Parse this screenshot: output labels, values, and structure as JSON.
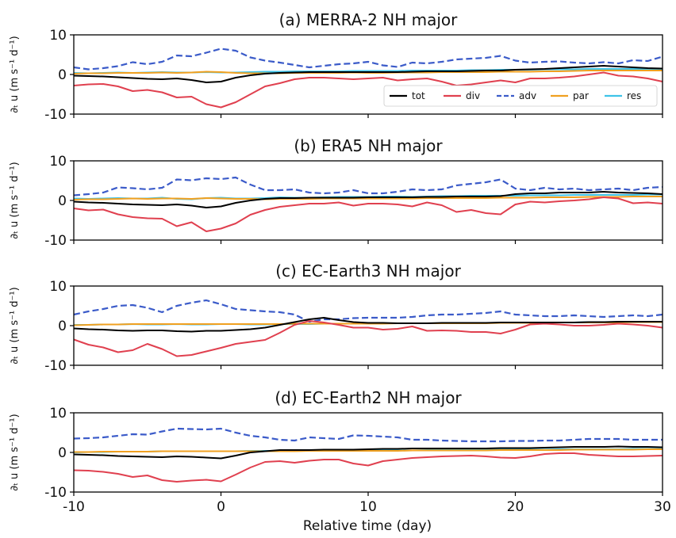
{
  "figure": {
    "xlabel": "Relative time (day)",
    "ylabel": "∂ₜ u (m s⁻¹ d⁻¹)"
  },
  "legend": [
    {
      "key": "tot",
      "label": "tot",
      "color": "#000000",
      "dash": "solid"
    },
    {
      "key": "div",
      "label": "div",
      "color": "#e0404f",
      "dash": "solid"
    },
    {
      "key": "adv",
      "label": "adv",
      "color": "#3b5bc9",
      "dash": "dashed"
    },
    {
      "key": "par",
      "label": "par",
      "color": "#f0a020",
      "dash": "solid"
    },
    {
      "key": "res",
      "label": "res",
      "color": "#3ec3e8",
      "dash": "solid"
    }
  ],
  "chart_data": [
    {
      "type": "line",
      "title": "(a) MERRA-2 NH major",
      "xlim": [
        -10,
        30
      ],
      "ylim": [
        -10,
        10
      ],
      "xticks": [
        "-10",
        "0",
        "10",
        "20",
        "30"
      ],
      "yticks": [
        "10",
        "0",
        "-10"
      ],
      "x": [
        -10,
        -9,
        -8,
        -7,
        -6,
        -5,
        -4,
        -3,
        -2,
        -1,
        0,
        1,
        2,
        3,
        4,
        5,
        6,
        7,
        8,
        9,
        10,
        11,
        12,
        13,
        14,
        15,
        16,
        17,
        18,
        19,
        20,
        21,
        22,
        23,
        24,
        25,
        26,
        27,
        28,
        29,
        30
      ],
      "series": [
        {
          "name": "tot",
          "values": [
            -0.3,
            -0.4,
            -0.5,
            -0.7,
            -0.9,
            -1.1,
            -1.2,
            -1.0,
            -1.4,
            -2.0,
            -1.8,
            -0.8,
            -0.2,
            0.2,
            0.4,
            0.5,
            0.6,
            0.6,
            0.6,
            0.6,
            0.6,
            0.6,
            0.6,
            0.7,
            0.8,
            0.8,
            0.8,
            0.9,
            1.0,
            1.0,
            1.2,
            1.3,
            1.4,
            1.6,
            1.8,
            2.0,
            2.2,
            2.0,
            1.8,
            1.6,
            1.5
          ]
        },
        {
          "name": "div",
          "values": [
            -2.8,
            -2.5,
            -2.4,
            -3.0,
            -4.2,
            -3.9,
            -4.5,
            -5.8,
            -5.6,
            -7.5,
            -8.3,
            -7.0,
            -5.0,
            -3.0,
            -2.2,
            -1.2,
            -0.8,
            -0.8,
            -1.0,
            -1.2,
            -1.0,
            -0.8,
            -1.5,
            -1.2,
            -1.0,
            -1.8,
            -2.8,
            -2.5,
            -2.0,
            -1.5,
            -2.0,
            -1.0,
            -1.0,
            -0.8,
            -0.5,
            0.0,
            0.5,
            -0.3,
            -0.5,
            -1.0,
            -1.8
          ]
        },
        {
          "name": "adv",
          "values": [
            1.8,
            1.3,
            1.6,
            2.1,
            3.1,
            2.6,
            3.2,
            4.8,
            4.6,
            5.5,
            6.5,
            6.0,
            4.3,
            3.5,
            3.0,
            2.4,
            1.8,
            2.2,
            2.6,
            2.8,
            3.2,
            2.3,
            1.9,
            3.0,
            2.8,
            3.2,
            3.8,
            4.0,
            4.2,
            4.7,
            3.5,
            3.0,
            3.2,
            3.3,
            3.0,
            2.8,
            3.1,
            2.8,
            3.6,
            3.4,
            4.5
          ]
        },
        {
          "name": "par",
          "values": [
            0.2,
            0.3,
            0.3,
            0.4,
            0.4,
            0.4,
            0.5,
            0.4,
            0.5,
            0.7,
            0.6,
            0.4,
            0.3,
            0.3,
            0.3,
            0.4,
            0.4,
            0.4,
            0.4,
            0.5,
            0.4,
            0.4,
            0.5,
            0.5,
            0.5,
            0.6,
            0.6,
            0.6,
            0.6,
            0.7,
            0.7,
            0.7,
            0.8,
            0.8,
            0.9,
            1.0,
            1.0,
            1.0,
            1.0,
            1.0,
            1.0
          ]
        },
        {
          "name": "res",
          "values": [
            0.4,
            0.3,
            0.4,
            0.5,
            0.4,
            0.5,
            0.6,
            0.5,
            0.5,
            0.6,
            0.5,
            0.5,
            0.6,
            0.7,
            0.7,
            0.8,
            0.8,
            0.8,
            0.8,
            0.9,
            0.9,
            0.9,
            0.9,
            1.0,
            1.0,
            1.0,
            1.0,
            1.1,
            1.1,
            1.2,
            1.2,
            1.2,
            1.3,
            1.3,
            1.3,
            1.4,
            1.4,
            1.4,
            1.4,
            1.4,
            1.4
          ]
        }
      ]
    },
    {
      "type": "line",
      "title": "(b) ERA5 NH major",
      "xlim": [
        -10,
        30
      ],
      "ylim": [
        -10,
        10
      ],
      "xticks": [
        "-10",
        "0",
        "10",
        "20",
        "30"
      ],
      "yticks": [
        "10",
        "0",
        "-10"
      ],
      "x": [
        -10,
        -9,
        -8,
        -7,
        -6,
        -5,
        -4,
        -3,
        -2,
        -1,
        0,
        1,
        2,
        3,
        4,
        5,
        6,
        7,
        8,
        9,
        10,
        11,
        12,
        13,
        14,
        15,
        16,
        17,
        18,
        19,
        20,
        21,
        22,
        23,
        24,
        25,
        26,
        27,
        28,
        29,
        30
      ],
      "series": [
        {
          "name": "tot",
          "values": [
            -0.3,
            -0.5,
            -0.6,
            -0.8,
            -1.0,
            -1.1,
            -1.2,
            -1.0,
            -1.3,
            -1.8,
            -1.5,
            -0.6,
            0.0,
            0.4,
            0.6,
            0.6,
            0.7,
            0.7,
            0.7,
            0.7,
            0.8,
            0.8,
            0.8,
            0.8,
            0.9,
            0.9,
            1.0,
            1.0,
            1.0,
            1.1,
            1.6,
            1.8,
            1.8,
            2.0,
            2.0,
            2.0,
            2.2,
            2.0,
            1.9,
            1.8,
            1.6
          ]
        },
        {
          "name": "div",
          "values": [
            -2.0,
            -2.5,
            -2.3,
            -3.5,
            -4.2,
            -4.5,
            -4.6,
            -6.5,
            -5.5,
            -7.8,
            -7.1,
            -5.8,
            -3.6,
            -2.4,
            -1.6,
            -1.2,
            -0.8,
            -0.8,
            -0.5,
            -1.3,
            -0.8,
            -0.8,
            -1.0,
            -1.5,
            -0.5,
            -1.2,
            -2.9,
            -2.4,
            -3.2,
            -3.5,
            -1.0,
            -0.3,
            -0.5,
            -0.2,
            0.0,
            0.3,
            0.8,
            0.5,
            -0.7,
            -0.5,
            -0.8
          ]
        },
        {
          "name": "adv",
          "values": [
            1.3,
            1.6,
            2.0,
            3.3,
            3.1,
            2.8,
            3.2,
            5.3,
            5.1,
            5.6,
            5.4,
            5.8,
            4.0,
            2.6,
            2.6,
            2.8,
            2.0,
            1.8,
            2.0,
            2.6,
            1.8,
            1.8,
            2.2,
            2.8,
            2.6,
            2.8,
            3.8,
            4.2,
            4.6,
            5.3,
            3.0,
            2.6,
            3.2,
            2.8,
            3.0,
            2.6,
            2.8,
            3.0,
            2.6,
            3.2,
            3.4
          ]
        },
        {
          "name": "par",
          "values": [
            0.2,
            0.3,
            0.3,
            0.4,
            0.5,
            0.4,
            0.5,
            0.5,
            0.4,
            0.6,
            0.5,
            0.4,
            0.4,
            0.3,
            0.4,
            0.4,
            0.4,
            0.5,
            0.5,
            0.5,
            0.5,
            0.5,
            0.5,
            0.5,
            0.6,
            0.6,
            0.6,
            0.6,
            0.6,
            0.7,
            0.7,
            0.7,
            0.8,
            0.8,
            0.8,
            0.9,
            0.9,
            0.9,
            1.0,
            1.0,
            1.0
          ]
        },
        {
          "name": "res",
          "values": [
            0.5,
            0.4,
            0.5,
            0.6,
            0.5,
            0.5,
            0.7,
            0.4,
            0.3,
            0.6,
            0.7,
            0.5,
            0.5,
            0.6,
            0.8,
            0.7,
            0.7,
            0.8,
            0.9,
            0.9,
            0.9,
            1.0,
            1.0,
            0.9,
            1.0,
            1.1,
            1.1,
            1.2,
            1.2,
            1.2,
            1.2,
            1.3,
            1.3,
            1.3,
            1.4,
            1.4,
            1.4,
            1.4,
            1.4,
            1.5,
            1.5
          ]
        }
      ]
    },
    {
      "type": "line",
      "title": "(c) EC-Earth3 NH major",
      "xlim": [
        -10,
        30
      ],
      "ylim": [
        -10,
        10
      ],
      "xticks": [
        "-10",
        "0",
        "10",
        "20",
        "30"
      ],
      "yticks": [
        "10",
        "0",
        "-10"
      ],
      "x": [
        -10,
        -9,
        -8,
        -7,
        -6,
        -5,
        -4,
        -3,
        -2,
        -1,
        0,
        1,
        2,
        3,
        4,
        5,
        6,
        7,
        8,
        9,
        10,
        11,
        12,
        13,
        14,
        15,
        16,
        17,
        18,
        19,
        20,
        21,
        22,
        23,
        24,
        25,
        26,
        27,
        28,
        29,
        30
      ],
      "series": [
        {
          "name": "tot",
          "values": [
            -0.7,
            -0.9,
            -1.0,
            -1.2,
            -1.3,
            -1.2,
            -1.2,
            -1.4,
            -1.5,
            -1.3,
            -1.3,
            -1.1,
            -0.9,
            -0.5,
            0.2,
            0.9,
            1.6,
            2.0,
            1.4,
            0.9,
            0.7,
            0.7,
            0.6,
            0.6,
            0.6,
            0.7,
            0.7,
            0.7,
            0.7,
            0.8,
            0.8,
            0.8,
            0.8,
            0.8,
            0.8,
            0.9,
            0.9,
            1.0,
            1.0,
            1.0,
            1.0
          ]
        },
        {
          "name": "div",
          "values": [
            -3.5,
            -4.8,
            -5.5,
            -6.7,
            -6.2,
            -4.6,
            -5.9,
            -7.7,
            -7.4,
            -6.5,
            -5.6,
            -4.6,
            -4.1,
            -3.6,
            -1.8,
            0.2,
            1.2,
            0.8,
            0.2,
            -0.5,
            -0.5,
            -1.0,
            -0.8,
            -0.2,
            -1.3,
            -1.2,
            -1.3,
            -1.6,
            -1.6,
            -2.0,
            -1.0,
            0.3,
            0.5,
            0.3,
            0.0,
            0.0,
            0.2,
            0.5,
            0.3,
            0.0,
            -0.5
          ]
        },
        {
          "name": "adv",
          "values": [
            2.8,
            3.6,
            4.2,
            5.0,
            5.2,
            4.5,
            3.4,
            5.0,
            5.8,
            6.4,
            5.4,
            4.2,
            3.9,
            3.6,
            3.4,
            2.8,
            1.0,
            1.6,
            1.6,
            1.9,
            2.0,
            2.0,
            2.0,
            2.2,
            2.6,
            2.8,
            2.8,
            3.0,
            3.2,
            3.6,
            2.8,
            2.6,
            2.4,
            2.4,
            2.6,
            2.4,
            2.2,
            2.4,
            2.6,
            2.4,
            2.8
          ]
        },
        {
          "name": "par",
          "values": [
            0.1,
            0.2,
            0.3,
            0.3,
            0.4,
            0.4,
            0.4,
            0.4,
            0.4,
            0.4,
            0.4,
            0.4,
            0.4,
            0.4,
            0.4,
            0.5,
            0.5,
            0.5,
            0.5,
            0.5,
            0.5,
            0.5,
            0.6,
            0.6,
            0.6,
            0.6,
            0.6,
            0.6,
            0.6,
            0.7,
            0.7,
            0.7,
            0.7,
            0.8,
            0.8,
            0.8,
            0.8,
            0.8,
            0.9,
            0.9,
            0.9
          ]
        },
        {
          "name": "res",
          "values": [
            0.2,
            0.2,
            0.3,
            0.3,
            0.4,
            0.3,
            0.3,
            0.4,
            0.3,
            0.3,
            0.4,
            0.4,
            0.3,
            0.3,
            0.4,
            0.4,
            0.4,
            0.5,
            0.5,
            0.5,
            0.5,
            0.6,
            0.6,
            0.6,
            0.6,
            0.6,
            0.6,
            0.7,
            0.7,
            0.7,
            0.7,
            0.8,
            0.8,
            0.8,
            0.8,
            0.9,
            0.9,
            0.9,
            0.9,
            1.0,
            1.0
          ]
        }
      ]
    },
    {
      "type": "line",
      "title": "(d) EC-Earth2 NH major",
      "xlim": [
        -10,
        30
      ],
      "ylim": [
        -10,
        10
      ],
      "xticks": [
        "-10",
        "0",
        "10",
        "20",
        "30"
      ],
      "yticks": [
        "10",
        "0",
        "-10"
      ],
      "x": [
        -10,
        -9,
        -8,
        -7,
        -6,
        -5,
        -4,
        -3,
        -2,
        -1,
        0,
        1,
        2,
        3,
        4,
        5,
        6,
        7,
        8,
        9,
        10,
        11,
        12,
        13,
        14,
        15,
        16,
        17,
        18,
        19,
        20,
        21,
        22,
        23,
        24,
        25,
        26,
        27,
        28,
        29,
        30
      ],
      "series": [
        {
          "name": "tot",
          "values": [
            -0.5,
            -0.6,
            -0.7,
            -0.9,
            -1.0,
            -1.1,
            -1.2,
            -1.0,
            -1.1,
            -1.3,
            -1.5,
            -0.8,
            0.0,
            0.3,
            0.6,
            0.6,
            0.6,
            0.7,
            0.7,
            0.7,
            0.8,
            0.9,
            0.9,
            1.0,
            1.0,
            1.0,
            1.0,
            1.0,
            1.0,
            1.1,
            1.1,
            1.1,
            1.2,
            1.3,
            1.4,
            1.4,
            1.4,
            1.5,
            1.4,
            1.4,
            1.3
          ]
        },
        {
          "name": "div",
          "values": [
            -4.5,
            -4.6,
            -4.9,
            -5.4,
            -6.2,
            -5.8,
            -7.0,
            -7.4,
            -7.1,
            -6.9,
            -7.3,
            -5.6,
            -3.8,
            -2.4,
            -2.2,
            -2.6,
            -2.1,
            -1.8,
            -1.8,
            -2.8,
            -3.3,
            -2.2,
            -1.8,
            -1.4,
            -1.2,
            -1.0,
            -0.9,
            -0.8,
            -1.0,
            -1.3,
            -1.4,
            -1.0,
            -0.4,
            -0.2,
            -0.2,
            -0.6,
            -0.8,
            -1.0,
            -1.0,
            -0.9,
            -0.8
          ]
        },
        {
          "name": "adv",
          "values": [
            3.5,
            3.6,
            3.8,
            4.2,
            4.6,
            4.5,
            5.3,
            6.0,
            5.9,
            5.8,
            6.0,
            5.0,
            4.2,
            3.8,
            3.2,
            3.0,
            3.8,
            3.6,
            3.4,
            4.3,
            4.2,
            4.0,
            3.8,
            3.2,
            3.2,
            3.0,
            2.9,
            2.8,
            2.8,
            2.8,
            2.9,
            2.9,
            3.0,
            3.0,
            3.2,
            3.4,
            3.4,
            3.4,
            3.2,
            3.2,
            3.2
          ]
        },
        {
          "name": "par",
          "values": [
            0.1,
            0.1,
            0.2,
            0.2,
            0.2,
            0.2,
            0.3,
            0.3,
            0.3,
            0.3,
            0.3,
            0.3,
            0.3,
            0.3,
            0.3,
            0.3,
            0.4,
            0.4,
            0.4,
            0.4,
            0.4,
            0.4,
            0.4,
            0.5,
            0.5,
            0.5,
            0.5,
            0.5,
            0.5,
            0.6,
            0.6,
            0.6,
            0.6,
            0.6,
            0.7,
            0.7,
            0.7,
            0.7,
            0.7,
            0.8,
            0.8
          ]
        },
        {
          "name": "res",
          "values": [
            0.0,
            0.1,
            0.1,
            0.2,
            0.2,
            0.2,
            0.3,
            0.3,
            0.3,
            0.3,
            0.3,
            0.3,
            0.4,
            0.4,
            0.4,
            0.4,
            0.4,
            0.5,
            0.5,
            0.5,
            0.5,
            0.5,
            0.5,
            0.5,
            0.6,
            0.6,
            0.6,
            0.6,
            0.7,
            0.7,
            0.7,
            0.7,
            0.7,
            0.8,
            0.8,
            0.8,
            0.8,
            0.8,
            0.9,
            0.9,
            0.9
          ]
        }
      ]
    }
  ]
}
